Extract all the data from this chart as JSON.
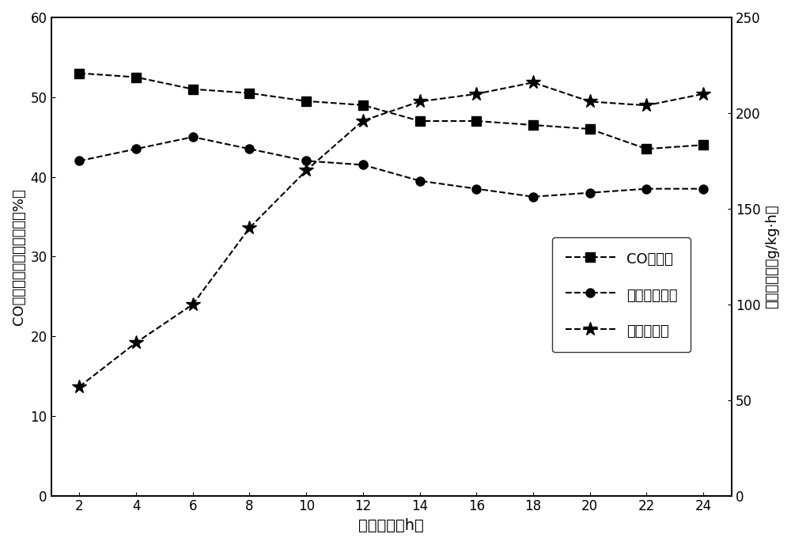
{
  "x": [
    2,
    4,
    6,
    8,
    10,
    12,
    14,
    16,
    18,
    20,
    22,
    24
  ],
  "co_conversion": [
    53.0,
    52.5,
    51.0,
    50.5,
    49.5,
    49.0,
    47.0,
    47.0,
    46.5,
    46.0,
    43.5,
    44.0
  ],
  "low_alcohol_selectivity": [
    42.0,
    43.5,
    45.0,
    43.5,
    42.0,
    41.5,
    39.5,
    38.5,
    37.5,
    38.0,
    38.5,
    38.5
  ],
  "low_alcohol_yield": [
    57,
    80,
    100,
    140,
    170,
    196,
    206,
    210,
    216,
    206,
    204,
    210
  ],
  "ylabel_left": "CO转化率和低碳醒选择性（%）",
  "ylabel_right": "低碳醒产率（g/kg·h）",
  "xlabel": "反应时间（h）",
  "legend_co": "CO转化率",
  "legend_selectivity": "低碳醒选择性",
  "legend_yield": "低碳醒产率",
  "ylim_left": [
    0,
    60
  ],
  "ylim_right": [
    0,
    250
  ],
  "yticks_left": [
    0,
    10,
    20,
    30,
    40,
    50,
    60
  ],
  "yticks_right": [
    0,
    50,
    100,
    150,
    200,
    250
  ],
  "line_color": "#000000",
  "bg_color": "#ffffff"
}
